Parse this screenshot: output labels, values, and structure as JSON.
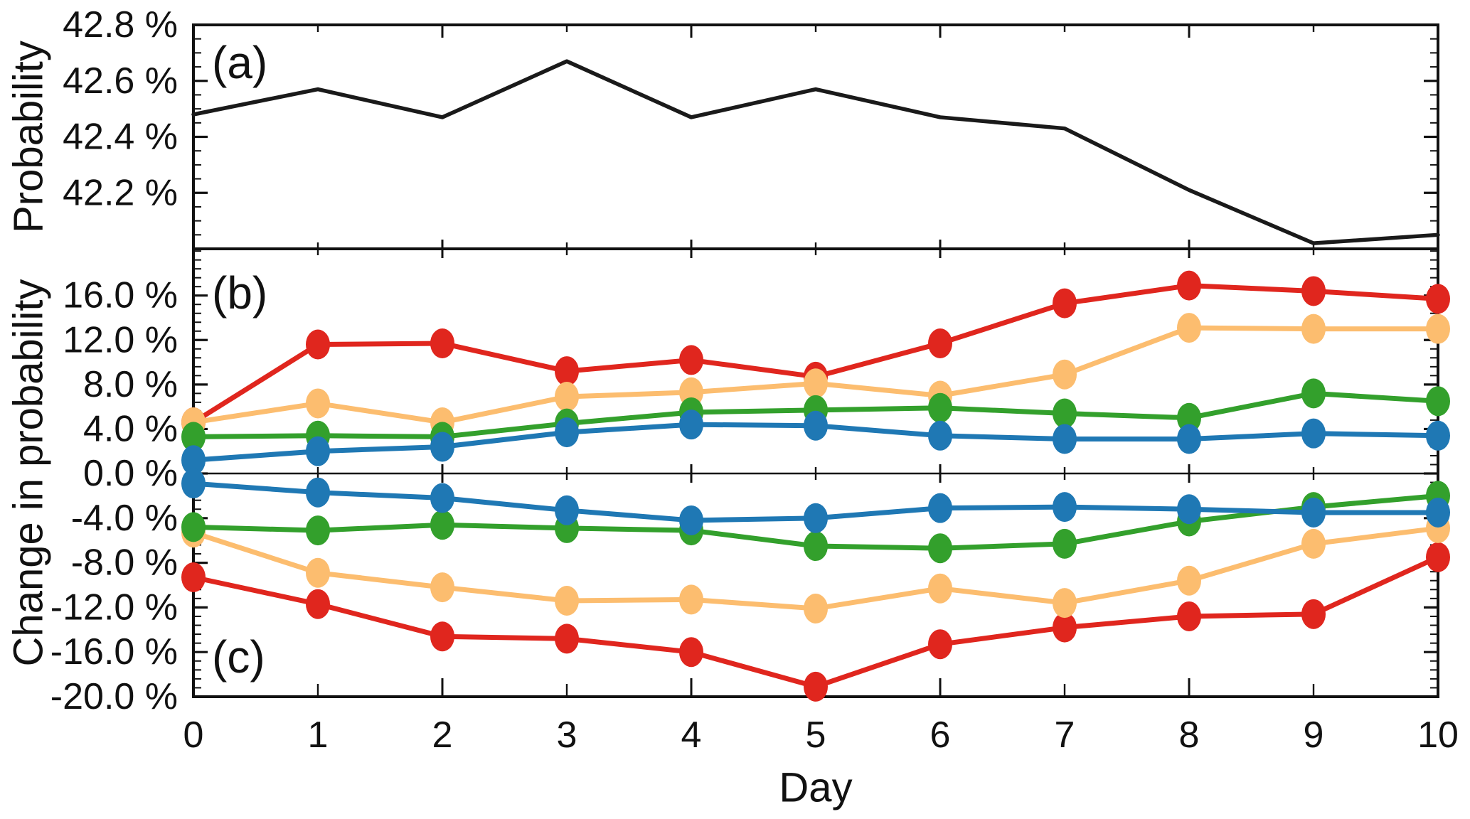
{
  "figure": {
    "xlabel": "Day",
    "x_tick_labels": [
      "0",
      "1",
      "2",
      "3",
      "4",
      "5",
      "6",
      "7",
      "8",
      "9",
      "10"
    ],
    "ylabel_top": "Probability",
    "ylabel_bottom": "Change in probability",
    "background_color": "#ffffff",
    "axis_color": "#111111"
  },
  "chart_data": {
    "type": "line",
    "title": "",
    "xlabel": "Day",
    "x": [
      0,
      1,
      2,
      3,
      4,
      5,
      6,
      7,
      8,
      9,
      10
    ],
    "grid": false,
    "legend": "none",
    "panels": [
      {
        "id": "a",
        "label": "(a)",
        "ylabel": "Probability",
        "ylim": [
          42.0,
          42.8
        ],
        "ytick_values": [
          42.2,
          42.4,
          42.6,
          42.8
        ],
        "ytick_labels": [
          "42.2 %",
          "42.4 %",
          "42.6 %",
          "42.8 %"
        ],
        "yminor_step": 0.05,
        "series": [
          {
            "name": "probability",
            "color": "#1a1a1a",
            "marker": false,
            "values": [
              42.48,
              42.57,
              42.47,
              42.67,
              42.47,
              42.57,
              42.47,
              42.43,
              42.21,
              42.02,
              42.05
            ]
          }
        ]
      },
      {
        "id": "b",
        "label": "(b)",
        "ylabel": "Change in probability",
        "ylim": [
          0,
          20.2
        ],
        "ytick_values": [
          0,
          4,
          8,
          12,
          16
        ],
        "ytick_labels": [
          "0.0 %",
          "4.0 %",
          "8.0 %",
          "12.0 %",
          "16.0 %"
        ],
        "yminor_step": 0.8,
        "series": [
          {
            "name": "series-red",
            "color": "#e0261e",
            "marker": true,
            "values": [
              4.6,
              11.6,
              11.7,
              9.2,
              10.2,
              8.7,
              11.7,
              15.3,
              16.9,
              16.4,
              15.7
            ]
          },
          {
            "name": "series-orange",
            "color": "#fcbd6f",
            "marker": true,
            "values": [
              4.6,
              6.3,
              4.6,
              6.9,
              7.3,
              8.1,
              7.0,
              8.9,
              13.1,
              13.0,
              13.0
            ]
          },
          {
            "name": "series-green",
            "color": "#33a02c",
            "marker": true,
            "values": [
              3.3,
              3.4,
              3.3,
              4.5,
              5.5,
              5.7,
              5.9,
              5.4,
              5.0,
              7.2,
              6.5
            ]
          },
          {
            "name": "series-blue",
            "color": "#1f78b4",
            "marker": true,
            "values": [
              1.2,
              2.0,
              2.4,
              3.7,
              4.4,
              4.3,
              3.4,
              3.1,
              3.1,
              3.6,
              3.4
            ]
          }
        ]
      },
      {
        "id": "c",
        "label": "(c)",
        "ylabel": "",
        "ylim": [
          -20,
          0
        ],
        "ytick_values": [
          -20,
          -16,
          -12,
          -8,
          -4
        ],
        "ytick_labels": [
          "-20.0 %",
          "-16.0 %",
          "-12.0 %",
          "-8.0 %",
          "-4.0 %"
        ],
        "yminor_step": 0.8,
        "series": [
          {
            "name": "series-red",
            "color": "#e0261e",
            "marker": true,
            "values": [
              -9.3,
              -11.7,
              -14.6,
              -14.8,
              -16.0,
              -19.1,
              -15.3,
              -13.8,
              -12.8,
              -12.6,
              -7.5
            ]
          },
          {
            "name": "series-orange",
            "color": "#fcbd6f",
            "marker": true,
            "values": [
              -5.3,
              -8.9,
              -10.2,
              -11.4,
              -11.3,
              -12.1,
              -10.3,
              -11.6,
              -9.6,
              -6.3,
              -4.9
            ]
          },
          {
            "name": "series-green",
            "color": "#33a02c",
            "marker": true,
            "values": [
              -4.8,
              -5.1,
              -4.6,
              -4.9,
              -5.1,
              -6.5,
              -6.7,
              -6.3,
              -4.3,
              -3.0,
              -2.0
            ]
          },
          {
            "name": "series-blue",
            "color": "#1f78b4",
            "marker": true,
            "values": [
              -0.9,
              -1.7,
              -2.2,
              -3.3,
              -4.2,
              -4.0,
              -3.1,
              -3.0,
              -3.2,
              -3.5,
              -3.5
            ]
          }
        ]
      }
    ]
  }
}
